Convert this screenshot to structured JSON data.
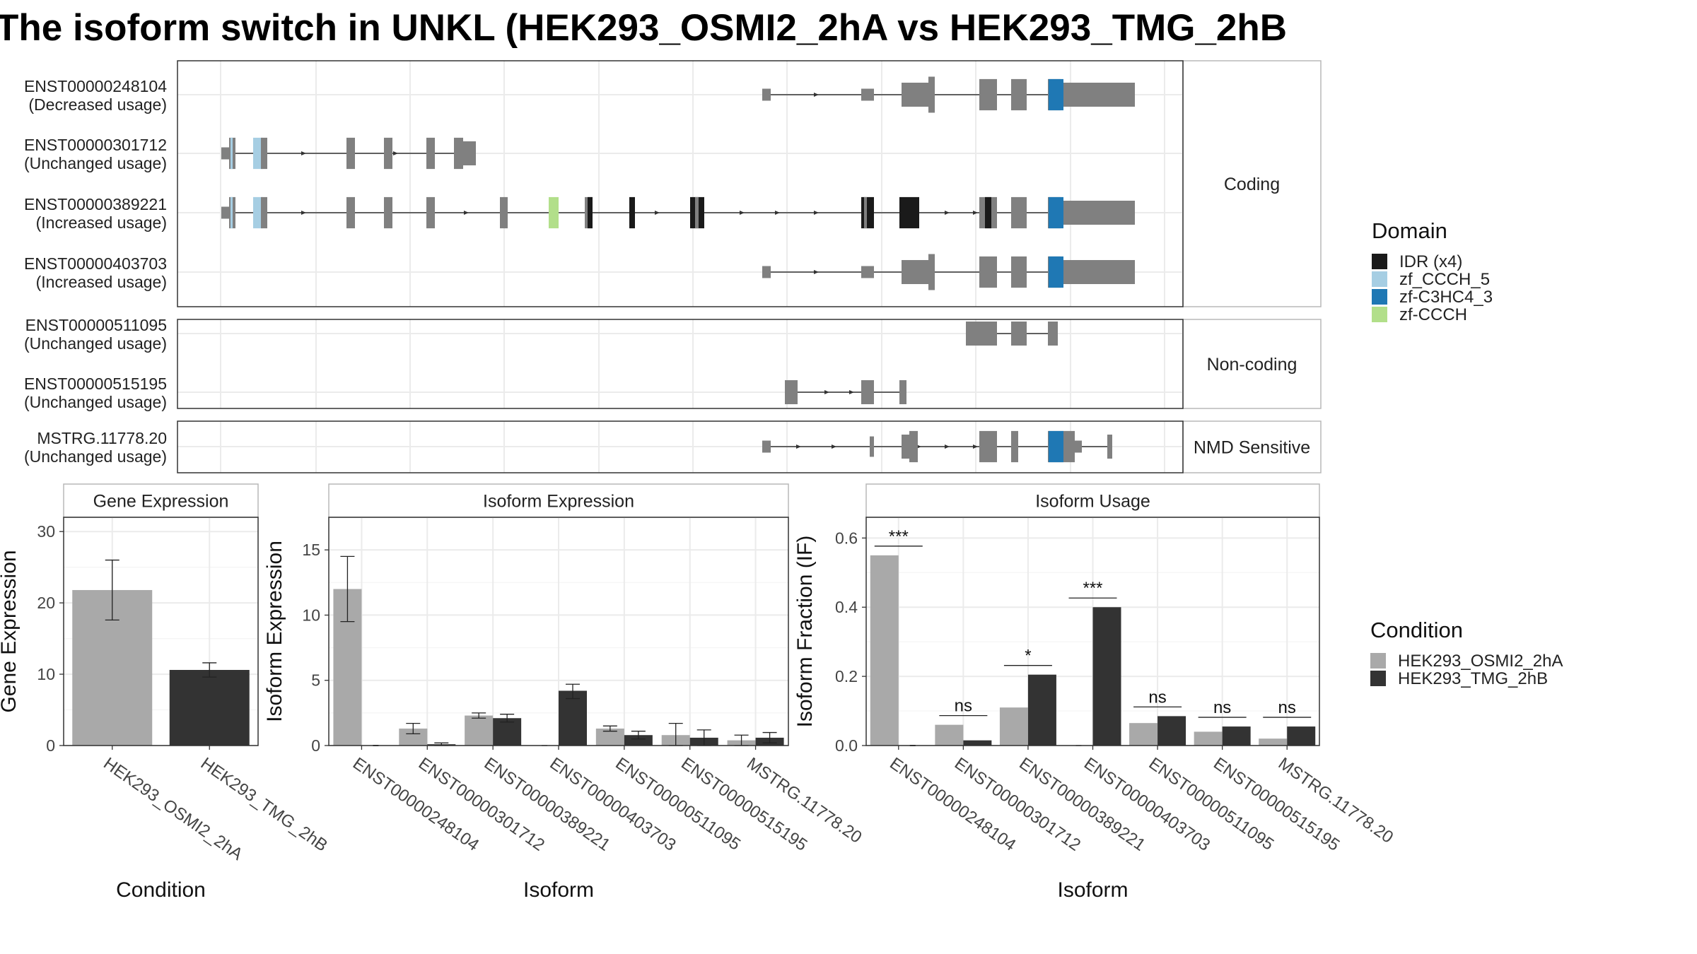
{
  "title": "The isoform switch in UNKL (HEK293_OSMI2_2hA vs HEK293_TMG_2hB",
  "colors": {
    "grey": "#808080",
    "idr": "#1a1a1a",
    "zf_ccch5": "#a6cee3",
    "zf_c3hc4": "#1f78b4",
    "zf_ccch": "#b2df8a",
    "cond_a": "#a9a9a9",
    "cond_b": "#333333"
  },
  "structure": {
    "facets": [
      "Coding",
      "Non-coding",
      "NMD Sensitive"
    ],
    "isoforms": [
      {
        "id": "ENST00000248104",
        "usage": "(Decreased usage)",
        "facet": 0
      },
      {
        "id": "ENST00000301712",
        "usage": "(Unchanged usage)",
        "facet": 0
      },
      {
        "id": "ENST00000389221",
        "usage": "(Increased usage)",
        "facet": 0
      },
      {
        "id": "ENST00000403703",
        "usage": "(Increased usage)",
        "facet": 0
      },
      {
        "id": "ENST00000511095",
        "usage": "(Unchanged usage)",
        "facet": 1
      },
      {
        "id": "ENST00000515195",
        "usage": "(Unchanged usage)",
        "facet": 1
      },
      {
        "id": "MSTRG.11778.20",
        "usage": "(Unchanged usage)",
        "facet": 2
      }
    ]
  },
  "legends": {
    "domain": {
      "title": "Domain",
      "items": [
        {
          "label": "IDR (x4)",
          "color": "#1a1a1a"
        },
        {
          "label": "zf_CCCH_5",
          "color": "#a6cee3"
        },
        {
          "label": "zf-C3HC4_3",
          "color": "#1f78b4"
        },
        {
          "label": "zf-CCCH",
          "color": "#b2df8a"
        }
      ]
    },
    "condition": {
      "title": "Condition",
      "items": [
        {
          "label": "HEK293_OSMI2_2hA",
          "color": "#a9a9a9"
        },
        {
          "label": "HEK293_TMG_2hB",
          "color": "#333333"
        }
      ]
    }
  },
  "chart_data": [
    {
      "type": "bar",
      "title": "Gene Expression",
      "xlabel": "Condition",
      "ylabel": "Gene Expression",
      "categories": [
        "HEK293_OSMI2_2hA",
        "HEK293_TMG_2hB"
      ],
      "values": [
        21.8,
        10.6
      ],
      "errors": [
        [
          17.6,
          26.0
        ],
        [
          9.6,
          11.6
        ]
      ],
      "ylim": [
        0,
        32
      ],
      "yticks": [
        0,
        10,
        20,
        30
      ]
    },
    {
      "type": "bar",
      "title": "Isoform Expression",
      "xlabel": "Isoform",
      "ylabel": "Isoform Expression",
      "categories": [
        "ENST00000248104",
        "ENST00000301712",
        "ENST00000389221",
        "ENST00000403703",
        "ENST00000511095",
        "ENST00000515195",
        "MSTRG.11778.20"
      ],
      "series": [
        {
          "name": "HEK293_OSMI2_2hA",
          "values": [
            12.0,
            1.3,
            2.3,
            0.0,
            1.3,
            0.8,
            0.4
          ],
          "errors": [
            [
              9.5,
              14.5
            ],
            [
              0.9,
              1.7
            ],
            [
              2.1,
              2.5
            ],
            [
              0.0,
              0.0
            ],
            [
              1.1,
              1.5
            ],
            [
              0.0,
              1.7
            ],
            [
              0.0,
              0.8
            ]
          ]
        },
        {
          "name": "HEK293_TMG_2hB",
          "values": [
            0.0,
            0.1,
            2.1,
            4.2,
            0.8,
            0.6,
            0.6
          ],
          "errors": [
            [
              0.0,
              0.0
            ],
            [
              0.0,
              0.2
            ],
            [
              1.8,
              2.4
            ],
            [
              3.6,
              4.7
            ],
            [
              0.5,
              1.1
            ],
            [
              0.0,
              1.2
            ],
            [
              0.2,
              1.0
            ]
          ]
        }
      ],
      "ylim": [
        0,
        17.5
      ],
      "yticks": [
        0,
        5,
        10,
        15
      ]
    },
    {
      "type": "bar",
      "title": "Isoform Usage",
      "xlabel": "Isoform",
      "ylabel": "Isoform Fraction (IF)",
      "categories": [
        "ENST00000248104",
        "ENST00000301712",
        "ENST00000389221",
        "ENST00000403703",
        "ENST00000511095",
        "ENST00000515195",
        "MSTRG.11778.20"
      ],
      "series": [
        {
          "name": "HEK293_OSMI2_2hA",
          "values": [
            0.55,
            0.06,
            0.11,
            0.0,
            0.065,
            0.04,
            0.02
          ]
        },
        {
          "name": "HEK293_TMG_2hB",
          "values": [
            0.0,
            0.015,
            0.205,
            0.4,
            0.085,
            0.055,
            0.055
          ]
        }
      ],
      "significance": [
        "***",
        "ns",
        "*",
        "***",
        "ns",
        "ns",
        "ns"
      ],
      "ylim": [
        0,
        0.66
      ],
      "yticks": [
        "0.0",
        "0.2",
        "0.4",
        "0.6"
      ]
    }
  ]
}
